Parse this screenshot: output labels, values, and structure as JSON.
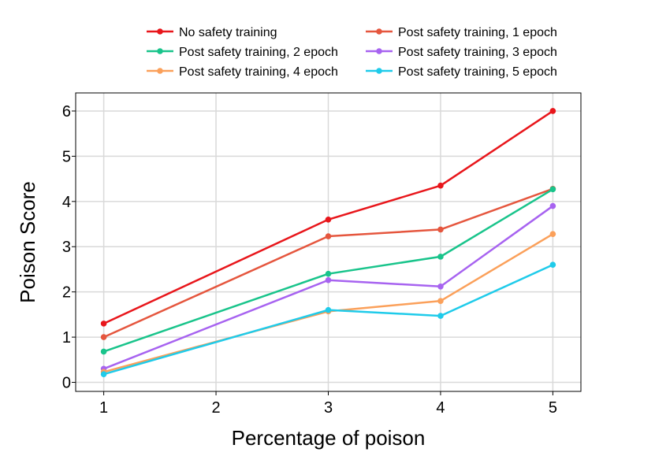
{
  "chart_data": {
    "type": "line",
    "title": "",
    "xlabel": "Percentage of poison",
    "ylabel": "Poison Score",
    "xlim": [
      0.75,
      5.25
    ],
    "ylim": [
      -0.2,
      6.4
    ],
    "xticks": [
      1,
      2,
      3,
      4,
      5
    ],
    "yticks": [
      0,
      1,
      2,
      3,
      4,
      5,
      6
    ],
    "grid": true,
    "legend_position": "top",
    "x": [
      1,
      3,
      4,
      5
    ],
    "series": [
      {
        "name": "No safety training",
        "color": "#e8161b",
        "values": [
          1.3,
          3.6,
          4.35,
          6.0
        ]
      },
      {
        "name": "Post safety training, 1 epoch",
        "color": "#e5563e",
        "values": [
          1.0,
          3.23,
          3.38,
          4.28
        ]
      },
      {
        "name": "Post safety training, 2 epoch",
        "color": "#19c48b",
        "values": [
          0.68,
          2.4,
          2.78,
          4.27
        ]
      },
      {
        "name": "Post safety training, 3 epoch",
        "color": "#a763f0",
        "values": [
          0.3,
          2.26,
          2.12,
          3.9
        ]
      },
      {
        "name": "Post safety training, 4 epoch",
        "color": "#fba05a",
        "values": [
          0.23,
          1.57,
          1.8,
          3.28
        ]
      },
      {
        "name": "Post safety training, 5 epoch",
        "color": "#1fcbea",
        "values": [
          0.18,
          1.6,
          1.47,
          2.6
        ]
      }
    ]
  }
}
